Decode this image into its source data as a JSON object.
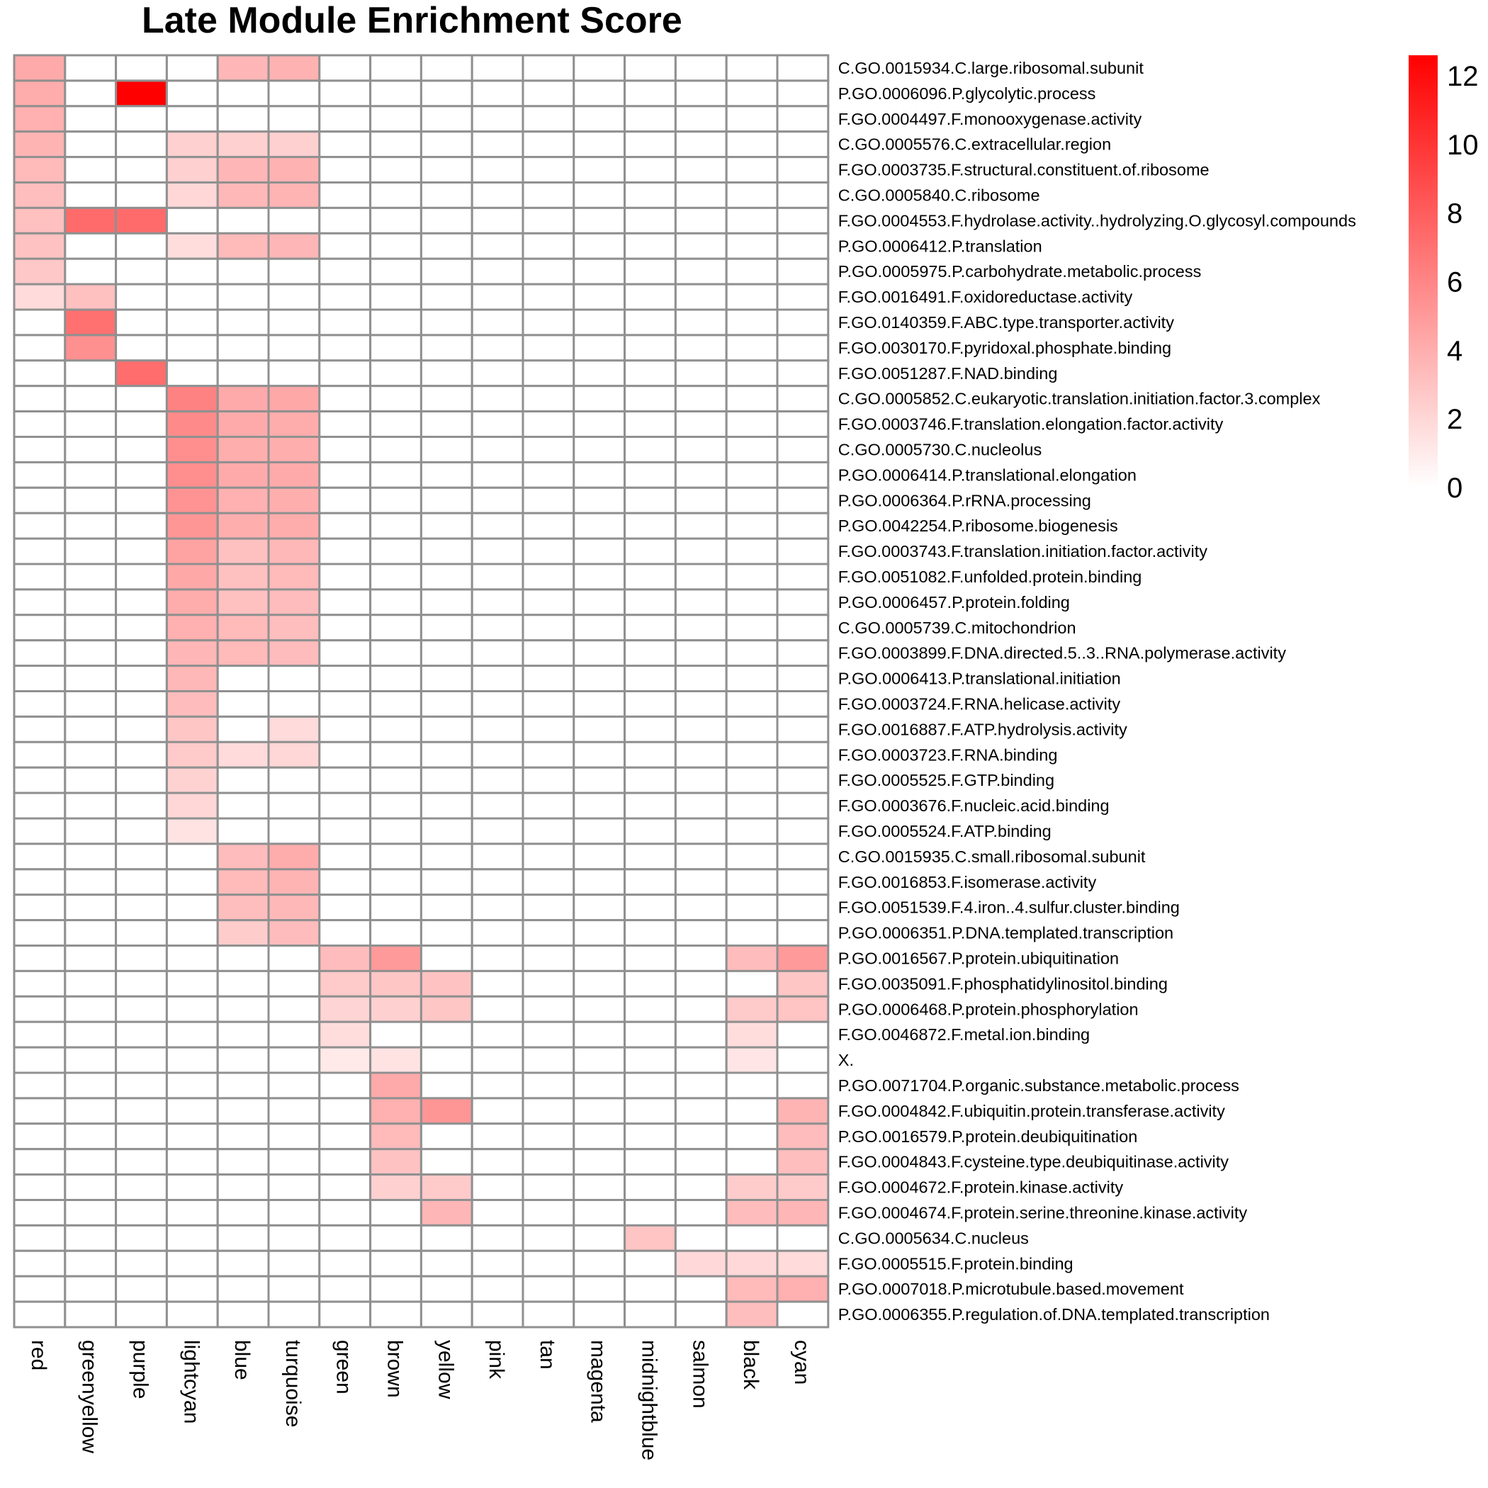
{
  "chart_data": {
    "type": "heatmap",
    "title": "Late Module Enrichment Score",
    "columns": [
      "red",
      "greenyellow",
      "purple",
      "lightcyan",
      "blue",
      "turquoise",
      "green",
      "brown",
      "yellow",
      "pink",
      "tan",
      "magenta",
      "midnightblue",
      "salmon",
      "black",
      "cyan"
    ],
    "rows": [
      "C.GO.0015934.C.large.ribosomal.subunit",
      "P.GO.0006096.P.glycolytic.process",
      "F.GO.0004497.F.monooxygenase.activity",
      "C.GO.0005576.C.extracellular.region",
      "F.GO.0003735.F.structural.constituent.of.ribosome",
      "C.GO.0005840.C.ribosome",
      "F.GO.0004553.F.hydrolase.activity..hydrolyzing.O.glycosyl.compounds",
      "P.GO.0006412.P.translation",
      "P.GO.0005975.P.carbohydrate.metabolic.process",
      "F.GO.0016491.F.oxidoreductase.activity",
      "F.GO.0140359.F.ABC.type.transporter.activity",
      "F.GO.0030170.F.pyridoxal.phosphate.binding",
      "F.GO.0051287.F.NAD.binding",
      "C.GO.0005852.C.eukaryotic.translation.initiation.factor.3.complex",
      "F.GO.0003746.F.translation.elongation.factor.activity",
      "C.GO.0005730.C.nucleolus",
      "P.GO.0006414.P.translational.elongation",
      "P.GO.0006364.P.rRNA.processing",
      "P.GO.0042254.P.ribosome.biogenesis",
      "F.GO.0003743.F.translation.initiation.factor.activity",
      "F.GO.0051082.F.unfolded.protein.binding",
      "P.GO.0006457.P.protein.folding",
      "C.GO.0005739.C.mitochondrion",
      "F.GO.0003899.F.DNA.directed.5..3..RNA.polymerase.activity",
      "P.GO.0006413.P.translational.initiation",
      "F.GO.0003724.F.RNA.helicase.activity",
      "F.GO.0016887.F.ATP.hydrolysis.activity",
      "F.GO.0003723.F.RNA.binding",
      "F.GO.0005525.F.GTP.binding",
      "F.GO.0003676.F.nucleic.acid.binding",
      "F.GO.0005524.F.ATP.binding",
      "C.GO.0015935.C.small.ribosomal.subunit",
      "F.GO.0016853.F.isomerase.activity",
      "F.GO.0051539.F.4.iron..4.sulfur.cluster.binding",
      "P.GO.0006351.P.DNA.templated.transcription",
      "P.GO.0016567.P.protein.ubiquitination",
      "F.GO.0035091.F.phosphatidylinositol.binding",
      "P.GO.0006468.P.protein.phosphorylation",
      "F.GO.0046872.F.metal.ion.binding",
      "X.",
      "P.GO.0071704.P.organic.substance.metabolic.process",
      "F.GO.0004842.F.ubiquitin.protein.transferase.activity",
      "P.GO.0016579.P.protein.deubiquitination",
      "F.GO.0004843.F.cysteine.type.deubiquitinase.activity",
      "F.GO.0004672.F.protein.kinase.activity",
      "F.GO.0004674.F.protein.serine.threonine.kinase.activity",
      "C.GO.0005634.C.nucleus",
      "F.GO.0005515.F.protein.binding",
      "P.GO.0007018.P.microtubule.based.movement",
      "P.GO.0006355.P.regulation.of.DNA.templated.transcription"
    ],
    "values": [
      [
        4.2,
        0,
        0,
        0,
        3.6,
        3.8,
        0,
        0,
        0,
        0,
        0,
        0,
        0,
        0,
        0,
        0
      ],
      [
        4.1,
        0,
        12.6,
        0,
        0,
        0,
        0,
        0,
        0,
        0,
        0,
        0,
        0,
        0,
        0,
        0
      ],
      [
        3.9,
        0,
        0,
        0,
        0,
        0,
        0,
        0,
        0,
        0,
        0,
        0,
        0,
        0,
        0,
        0
      ],
      [
        3.7,
        0,
        0,
        2.3,
        2.3,
        2.3,
        0,
        0,
        0,
        0,
        0,
        0,
        0,
        0,
        0,
        0
      ],
      [
        3.4,
        0,
        0,
        2.3,
        3.6,
        3.8,
        0,
        0,
        0,
        0,
        0,
        0,
        0,
        0,
        0,
        0
      ],
      [
        3.2,
        0,
        0,
        2.0,
        3.5,
        3.7,
        0,
        0,
        0,
        0,
        0,
        0,
        0,
        0,
        0,
        0
      ],
      [
        3.1,
        7.3,
        7.3,
        0,
        0,
        0,
        0,
        0,
        0,
        0,
        0,
        0,
        0,
        0,
        0,
        0
      ],
      [
        3.0,
        0,
        0,
        1.7,
        3.4,
        3.6,
        0,
        0,
        0,
        0,
        0,
        0,
        0,
        0,
        0,
        0
      ],
      [
        2.7,
        0,
        0,
        0,
        0,
        0,
        0,
        0,
        0,
        0,
        0,
        0,
        0,
        0,
        0,
        0
      ],
      [
        1.8,
        3.1,
        0,
        0,
        0,
        0,
        0,
        0,
        0,
        0,
        0,
        0,
        0,
        0,
        0,
        0
      ],
      [
        0,
        7.0,
        0,
        0,
        0,
        0,
        0,
        0,
        0,
        0,
        0,
        0,
        0,
        0,
        0,
        0
      ],
      [
        0,
        5.5,
        0,
        0,
        0,
        0,
        0,
        0,
        0,
        0,
        0,
        0,
        0,
        0,
        0,
        0
      ],
      [
        0,
        0,
        7.2,
        0,
        0,
        0,
        0,
        0,
        0,
        0,
        0,
        0,
        0,
        0,
        0,
        0
      ],
      [
        0,
        0,
        0,
        6.2,
        4.2,
        4.3,
        0,
        0,
        0,
        0,
        0,
        0,
        0,
        0,
        0,
        0
      ],
      [
        0,
        0,
        0,
        5.8,
        4.2,
        4.1,
        0,
        0,
        0,
        0,
        0,
        0,
        0,
        0,
        0,
        0
      ],
      [
        0,
        0,
        0,
        5.6,
        4.0,
        4.0,
        0,
        0,
        0,
        0,
        0,
        0,
        0,
        0,
        0,
        0
      ],
      [
        0,
        0,
        0,
        5.6,
        4.2,
        4.2,
        0,
        0,
        0,
        0,
        0,
        0,
        0,
        0,
        0,
        0
      ],
      [
        0,
        0,
        0,
        5.4,
        3.9,
        4.0,
        0,
        0,
        0,
        0,
        0,
        0,
        0,
        0,
        0,
        0
      ],
      [
        0,
        0,
        0,
        5.2,
        4.0,
        4.1,
        0,
        0,
        0,
        0,
        0,
        0,
        0,
        0,
        0,
        0
      ],
      [
        0,
        0,
        0,
        4.6,
        3.1,
        3.5,
        0,
        0,
        0,
        0,
        0,
        0,
        0,
        0,
        0,
        0
      ],
      [
        0,
        0,
        0,
        4.3,
        3.1,
        3.4,
        0,
        0,
        0,
        0,
        0,
        0,
        0,
        0,
        0,
        0
      ],
      [
        0,
        0,
        0,
        4.1,
        3.1,
        3.3,
        0,
        0,
        0,
        0,
        0,
        0,
        0,
        0,
        0,
        0
      ],
      [
        0,
        0,
        0,
        3.9,
        3.4,
        3.2,
        0,
        0,
        0,
        0,
        0,
        0,
        0,
        0,
        0,
        0
      ],
      [
        0,
        0,
        0,
        3.6,
        3.4,
        3.3,
        0,
        0,
        0,
        0,
        0,
        0,
        0,
        0,
        0,
        0
      ],
      [
        0,
        0,
        0,
        3.5,
        0,
        0,
        0,
        0,
        0,
        0,
        0,
        0,
        0,
        0,
        0,
        0
      ],
      [
        0,
        0,
        0,
        3.3,
        0,
        0,
        0,
        0,
        0,
        0,
        0,
        0,
        0,
        0,
        0,
        0
      ],
      [
        0,
        0,
        0,
        2.8,
        0,
        1.8,
        0,
        0,
        0,
        0,
        0,
        0,
        0,
        0,
        0,
        0
      ],
      [
        0,
        0,
        0,
        2.6,
        1.8,
        2.0,
        0,
        0,
        0,
        0,
        0,
        0,
        0,
        0,
        0,
        0
      ],
      [
        0,
        0,
        0,
        2.2,
        0,
        0,
        0,
        0,
        0,
        0,
        0,
        0,
        0,
        0,
        0,
        0
      ],
      [
        0,
        0,
        0,
        2.0,
        0,
        0,
        0,
        0,
        0,
        0,
        0,
        0,
        0,
        0,
        0,
        0
      ],
      [
        0,
        0,
        0,
        1.4,
        0,
        0,
        0,
        0,
        0,
        0,
        0,
        0,
        0,
        0,
        0,
        0
      ],
      [
        0,
        0,
        0,
        0,
        3.3,
        4.1,
        0,
        0,
        0,
        0,
        0,
        0,
        0,
        0,
        0,
        0
      ],
      [
        0,
        0,
        0,
        0,
        3.4,
        3.7,
        0,
        0,
        0,
        0,
        0,
        0,
        0,
        0,
        0,
        0
      ],
      [
        0,
        0,
        0,
        0,
        3.2,
        3.5,
        0,
        0,
        0,
        0,
        0,
        0,
        0,
        0,
        0,
        0
      ],
      [
        0,
        0,
        0,
        0,
        2.5,
        3.3,
        0,
        0,
        0,
        0,
        0,
        0,
        0,
        0,
        0,
        0
      ],
      [
        0,
        0,
        0,
        0,
        0,
        0,
        3.3,
        5.0,
        0,
        0,
        0,
        0,
        0,
        0,
        3.3,
        5.0
      ],
      [
        0,
        0,
        0,
        0,
        0,
        0,
        2.6,
        2.8,
        3.0,
        0,
        0,
        0,
        0,
        0,
        0,
        2.8
      ],
      [
        0,
        0,
        0,
        0,
        0,
        0,
        2.1,
        2.3,
        2.8,
        0,
        0,
        0,
        0,
        0,
        2.6,
        2.9
      ],
      [
        0,
        0,
        0,
        0,
        0,
        0,
        1.7,
        0,
        0,
        0,
        0,
        0,
        0,
        0,
        1.7,
        0
      ],
      [
        0,
        0,
        0,
        0,
        0,
        0,
        1.1,
        1.4,
        0,
        0,
        0,
        0,
        0,
        0,
        1.3,
        0
      ],
      [
        0,
        0,
        0,
        0,
        0,
        0,
        0,
        4.2,
        0,
        0,
        0,
        0,
        0,
        0,
        0,
        0
      ],
      [
        0,
        0,
        0,
        0,
        0,
        0,
        0,
        3.9,
        5.2,
        0,
        0,
        0,
        0,
        0,
        0,
        3.7
      ],
      [
        0,
        0,
        0,
        0,
        0,
        0,
        0,
        3.4,
        0,
        0,
        0,
        0,
        0,
        0,
        0,
        3.3
      ],
      [
        0,
        0,
        0,
        0,
        0,
        0,
        0,
        3.0,
        0,
        0,
        0,
        0,
        0,
        0,
        0,
        3.2
      ],
      [
        0,
        0,
        0,
        0,
        0,
        0,
        0,
        2.3,
        2.6,
        0,
        0,
        0,
        0,
        0,
        2.5,
        2.6
      ],
      [
        0,
        0,
        0,
        0,
        0,
        0,
        0,
        0,
        3.6,
        0,
        0,
        0,
        0,
        0,
        3.3,
        3.6
      ],
      [
        0,
        0,
        0,
        0,
        0,
        0,
        0,
        0,
        0,
        0,
        0,
        0,
        2.9,
        0,
        0,
        0
      ],
      [
        0,
        0,
        0,
        0,
        0,
        0,
        0,
        0,
        0,
        0,
        0,
        0,
        0,
        1.9,
        1.9,
        1.8
      ],
      [
        0,
        0,
        0,
        0,
        0,
        0,
        0,
        0,
        0,
        0,
        0,
        0,
        0,
        0,
        3.4,
        3.9
      ],
      [
        0,
        0,
        0,
        0,
        0,
        0,
        0,
        0,
        0,
        0,
        0,
        0,
        0,
        0,
        3.2,
        0
      ]
    ],
    "color_scale": {
      "min": 0,
      "max": 12.6,
      "low_color": "#ffffff",
      "high_color": "#ff0000"
    },
    "legend": {
      "ticks": [
        "0",
        "2",
        "4",
        "6",
        "8",
        "10",
        "12"
      ],
      "placement": "top-right"
    },
    "grid_color": "#909090"
  }
}
